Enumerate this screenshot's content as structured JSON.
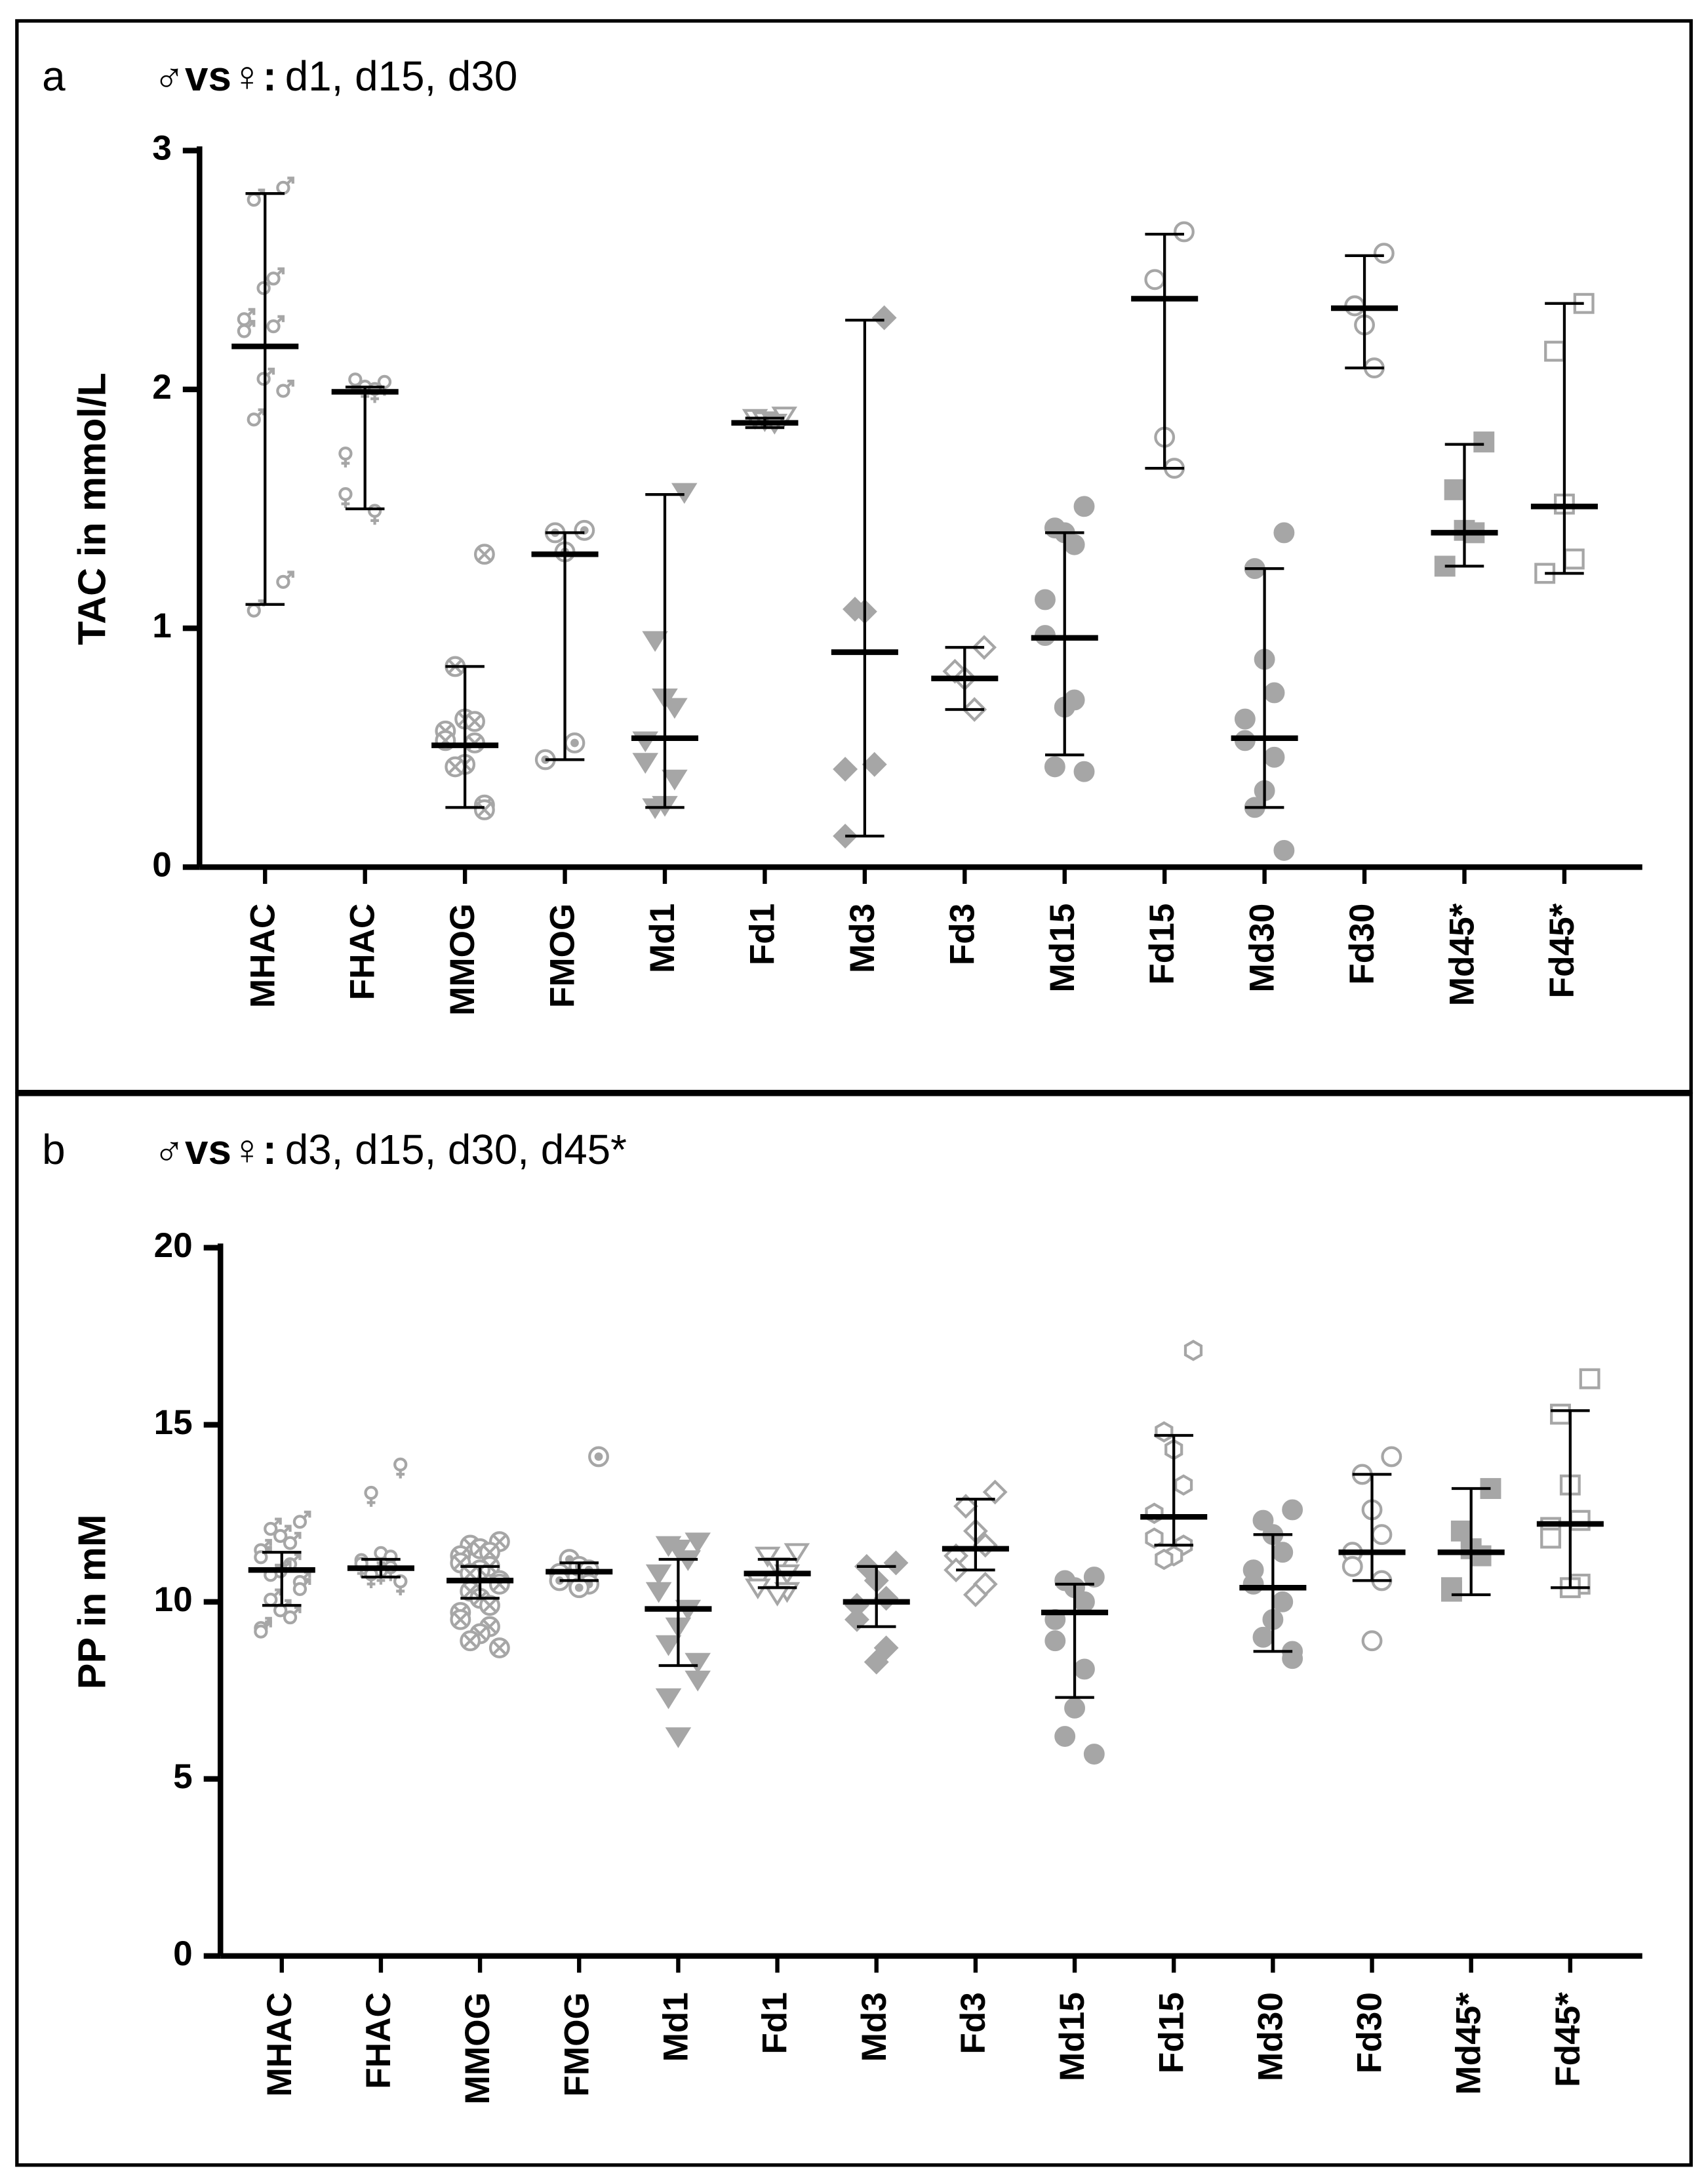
{
  "chart_data": [
    {
      "type": "dot",
      "panel_label": "a",
      "title_bold": "♂vs♀:",
      "title": "d1, d15, d30",
      "ylabel": "TAC in mmol/L",
      "ylim": [
        0,
        3
      ],
      "yticks": [
        0,
        1,
        2,
        3
      ],
      "point_color": "#a6a6a6",
      "bar_color": "#000000",
      "categories": [
        "MHAC",
        "FHAC",
        "MMOG",
        "FMOG",
        "Md1",
        "Fd1",
        "Md3",
        "Fd3",
        "Md15",
        "Fd15",
        "Md30",
        "Fd30",
        "Md45*",
        "Fd45*"
      ],
      "groups": [
        {
          "marker": "male",
          "fill": false,
          "mean": 2.18,
          "lower": 1.1,
          "upper": 2.82,
          "points": [
            2.85,
            2.8,
            2.43,
            2.47,
            2.3,
            2.25,
            2.27,
            2.05,
            1.88,
            2.0,
            1.2,
            1.08
          ]
        },
        {
          "marker": "female",
          "fill": false,
          "mean": 1.99,
          "lower": 1.5,
          "upper": 2.01,
          "points": [
            2.02,
            2.03,
            2.0,
            1.99,
            1.72,
            1.55,
            1.48
          ]
        },
        {
          "marker": "circle-x",
          "fill": false,
          "mean": 0.51,
          "lower": 0.25,
          "upper": 0.84,
          "points": [
            1.31,
            0.84,
            0.62,
            0.61,
            0.57,
            0.53,
            0.52,
            0.43,
            0.42,
            0.26,
            0.24
          ]
        },
        {
          "marker": "circle-dot",
          "fill": false,
          "mean": 1.31,
          "lower": 0.45,
          "upper": 1.4,
          "points": [
            1.41,
            1.4,
            1.32,
            0.52,
            0.45
          ]
        },
        {
          "marker": "triangle-down",
          "fill": true,
          "mean": 0.54,
          "lower": 0.25,
          "upper": 1.56,
          "points": [
            1.57,
            0.95,
            0.71,
            0.67,
            0.53,
            0.44,
            0.37,
            0.26,
            0.25
          ]
        },
        {
          "marker": "triangle-down",
          "fill": false,
          "mean": 1.86,
          "lower": 1.84,
          "upper": 1.88,
          "points": [
            1.89,
            1.88,
            1.87,
            1.86
          ]
        },
        {
          "marker": "diamond",
          "fill": true,
          "mean": 0.9,
          "lower": 0.13,
          "upper": 2.29,
          "points": [
            2.3,
            1.08,
            1.07,
            0.43,
            0.41,
            0.13
          ]
        },
        {
          "marker": "diamond",
          "fill": false,
          "mean": 0.79,
          "lower": 0.66,
          "upper": 0.92,
          "points": [
            0.92,
            0.82,
            0.79,
            0.66
          ]
        },
        {
          "marker": "circle",
          "fill": true,
          "mean": 0.96,
          "lower": 0.47,
          "upper": 1.4,
          "points": [
            1.51,
            1.42,
            1.4,
            1.35,
            1.12,
            0.97,
            0.7,
            0.67,
            0.42,
            0.4
          ]
        },
        {
          "marker": "circle",
          "fill": false,
          "mean": 2.38,
          "lower": 1.67,
          "upper": 2.65,
          "points": [
            2.66,
            2.46,
            1.8,
            1.67
          ]
        },
        {
          "marker": "circle",
          "fill": true,
          "mean": 0.54,
          "lower": 0.25,
          "upper": 1.25,
          "points": [
            1.4,
            1.25,
            0.87,
            0.73,
            0.62,
            0.53,
            0.46,
            0.32,
            0.25,
            0.07
          ]
        },
        {
          "marker": "circle",
          "fill": false,
          "mean": 2.34,
          "lower": 2.09,
          "upper": 2.56,
          "points": [
            2.57,
            2.35,
            2.27,
            2.09
          ]
        },
        {
          "marker": "square",
          "fill": true,
          "mean": 1.4,
          "lower": 1.26,
          "upper": 1.77,
          "points": [
            1.78,
            1.58,
            1.41,
            1.4,
            1.26
          ]
        },
        {
          "marker": "square",
          "fill": false,
          "mean": 1.51,
          "lower": 1.23,
          "upper": 2.36,
          "points": [
            2.36,
            2.16,
            1.52,
            1.29,
            1.23
          ]
        }
      ]
    },
    {
      "type": "dot",
      "panel_label": "b",
      "title_bold": "♂vs♀:",
      "title": "d3, d15, d30, d45*",
      "ylabel": "PP in mM",
      "ylim": [
        0,
        20
      ],
      "yticks": [
        0,
        5,
        10,
        15,
        20
      ],
      "point_color": "#a6a6a6",
      "bar_color": "#000000",
      "categories": [
        "MHAC",
        "FHAC",
        "MMOG",
        "FMOG",
        "Md1",
        "Fd1",
        "Md3",
        "Fd3",
        "Md15",
        "Fd15",
        "Md30",
        "Fd30",
        "Md45*",
        "Fd45*"
      ],
      "groups": [
        {
          "marker": "male",
          "fill": false,
          "mean": 10.9,
          "lower": 9.9,
          "upper": 11.4,
          "points": [
            12.3,
            12.1,
            11.9,
            11.7,
            11.5,
            11.3,
            11.1,
            10.9,
            10.8,
            10.6,
            10.4,
            10.1,
            9.8,
            9.6,
            9.3,
            9.2
          ]
        },
        {
          "marker": "female",
          "fill": false,
          "mean": 10.95,
          "lower": 10.7,
          "upper": 11.2,
          "points": [
            13.8,
            13.0,
            11.3,
            11.2,
            11.1,
            11.0,
            10.9,
            10.8,
            10.7,
            10.5,
            10.5
          ]
        },
        {
          "marker": "circle-x",
          "fill": false,
          "mean": 10.6,
          "lower": 10.1,
          "upper": 11.0,
          "points": [
            11.7,
            11.6,
            11.5,
            11.4,
            11.3,
            11.1,
            11.0,
            10.9,
            10.8,
            10.6,
            10.5,
            10.3,
            10.1,
            9.9,
            9.7,
            9.5,
            9.3,
            9.1,
            8.9,
            8.7
          ]
        },
        {
          "marker": "circle-dot",
          "fill": false,
          "mean": 10.85,
          "lower": 10.6,
          "upper": 11.1,
          "points": [
            14.1,
            11.2,
            11.0,
            10.9,
            10.8,
            10.6,
            10.5,
            10.4
          ]
        },
        {
          "marker": "triangle-down",
          "fill": true,
          "mean": 9.8,
          "lower": 8.2,
          "upper": 11.2,
          "points": [
            11.7,
            11.6,
            11.5,
            11.2,
            10.8,
            10.3,
            9.8,
            9.3,
            8.8,
            8.3,
            7.8,
            7.3,
            6.2
          ]
        },
        {
          "marker": "triangle-down",
          "fill": false,
          "mean": 10.8,
          "lower": 10.4,
          "upper": 11.2,
          "points": [
            11.4,
            11.3,
            11.0,
            10.8,
            10.6,
            10.4,
            10.3,
            10.2
          ]
        },
        {
          "marker": "diamond",
          "fill": true,
          "mean": 10.0,
          "lower": 9.3,
          "upper": 11.0,
          "points": [
            11.1,
            11.0,
            10.6,
            10.1,
            9.9,
            9.5,
            8.7,
            8.3
          ]
        },
        {
          "marker": "diamond",
          "fill": false,
          "mean": 11.5,
          "lower": 10.9,
          "upper": 12.9,
          "points": [
            13.1,
            12.7,
            12.0,
            11.6,
            11.3,
            10.9,
            10.5,
            10.2
          ]
        },
        {
          "marker": "circle",
          "fill": true,
          "mean": 9.7,
          "lower": 7.3,
          "upper": 10.5,
          "points": [
            10.7,
            10.6,
            10.4,
            10.0,
            9.5,
            8.9,
            8.1,
            7.0,
            6.2,
            5.7
          ]
        },
        {
          "marker": "hexagon",
          "fill": false,
          "mean": 12.4,
          "lower": 11.6,
          "upper": 14.7,
          "points": [
            17.1,
            14.8,
            14.3,
            13.3,
            12.5,
            11.8,
            11.6,
            11.3,
            11.2
          ]
        },
        {
          "marker": "circle",
          "fill": true,
          "mean": 10.4,
          "lower": 8.6,
          "upper": 11.9,
          "points": [
            12.6,
            12.3,
            11.9,
            11.4,
            10.9,
            10.5,
            10.0,
            9.5,
            9.0,
            8.6,
            8.4
          ]
        },
        {
          "marker": "circle",
          "fill": false,
          "mean": 11.4,
          "lower": 10.6,
          "upper": 13.6,
          "points": [
            14.1,
            13.6,
            12.6,
            11.9,
            11.4,
            11.0,
            10.6,
            8.9
          ]
        },
        {
          "marker": "square",
          "fill": true,
          "mean": 11.4,
          "lower": 10.2,
          "upper": 13.2,
          "points": [
            13.2,
            12.0,
            11.5,
            11.3,
            10.4,
            10.3
          ]
        },
        {
          "marker": "square",
          "fill": false,
          "mean": 12.2,
          "lower": 10.4,
          "upper": 15.4,
          "points": [
            16.3,
            15.3,
            13.3,
            12.3,
            12.1,
            11.8,
            10.5,
            10.4
          ]
        }
      ]
    }
  ]
}
